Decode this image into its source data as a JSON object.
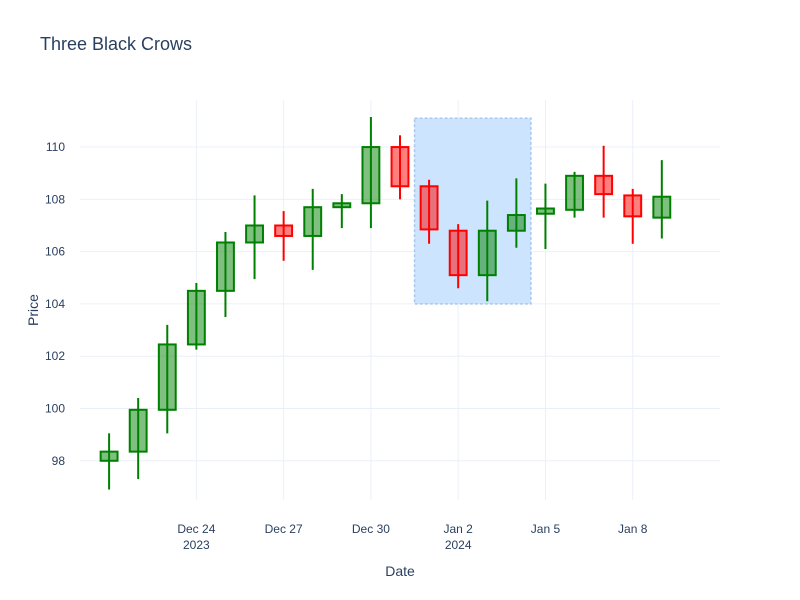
{
  "chart_data": {
    "type": "candlestick",
    "title": "Three Black Crows",
    "xlabel": "Date",
    "ylabel": "Price",
    "ylim": [
      96.5,
      111.8
    ],
    "yticks": [
      98,
      100,
      102,
      104,
      106,
      108,
      110
    ],
    "xlim": [
      "2023-12-20",
      "2024-01-11"
    ],
    "xticks": [
      {
        "date": "2023-12-24",
        "label": "Dec 24",
        "sublabel": "2023"
      },
      {
        "date": "2023-12-27",
        "label": "Dec 27",
        "sublabel": ""
      },
      {
        "date": "2023-12-30",
        "label": "Dec 30",
        "sublabel": ""
      },
      {
        "date": "2024-01-02",
        "label": "Jan 2",
        "sublabel": "2024"
      },
      {
        "date": "2024-01-05",
        "label": "Jan 5",
        "sublabel": ""
      },
      {
        "date": "2024-01-08",
        "label": "Jan 8",
        "sublabel": ""
      }
    ],
    "increasing_color": "#008000",
    "decreasing_color": "#ff0000",
    "highlight": {
      "x0": "2023-12-31 12:00",
      "x1": "2024-01-04 12:00",
      "y0": 104.0,
      "y1": 111.1,
      "fill": "#c9e3fd",
      "line": "#a9c8ee"
    },
    "candles": [
      {
        "date": "2023-12-21",
        "open": 98.0,
        "high": 99.05,
        "low": 96.9,
        "close": 98.35
      },
      {
        "date": "2023-12-22",
        "open": 98.35,
        "high": 100.4,
        "low": 97.3,
        "close": 99.95
      },
      {
        "date": "2023-12-23",
        "open": 99.95,
        "high": 103.2,
        "low": 99.05,
        "close": 102.45
      },
      {
        "date": "2023-12-24",
        "open": 102.45,
        "high": 104.8,
        "low": 102.25,
        "close": 104.5
      },
      {
        "date": "2023-12-25",
        "open": 104.5,
        "high": 106.75,
        "low": 103.5,
        "close": 106.35
      },
      {
        "date": "2023-12-26",
        "open": 106.35,
        "high": 108.15,
        "low": 104.95,
        "close": 107.0
      },
      {
        "date": "2023-12-27",
        "open": 107.0,
        "high": 107.55,
        "low": 105.65,
        "close": 106.6
      },
      {
        "date": "2023-12-28",
        "open": 106.6,
        "high": 108.4,
        "low": 105.3,
        "close": 107.7
      },
      {
        "date": "2023-12-29",
        "open": 107.7,
        "high": 108.2,
        "low": 106.9,
        "close": 107.85
      },
      {
        "date": "2023-12-30",
        "open": 107.85,
        "high": 111.15,
        "low": 106.9,
        "close": 110.0
      },
      {
        "date": "2023-12-31",
        "open": 110.0,
        "high": 110.45,
        "low": 108.0,
        "close": 108.5
      },
      {
        "date": "2024-01-01",
        "open": 108.5,
        "high": 108.75,
        "low": 106.3,
        "close": 106.85
      },
      {
        "date": "2024-01-02",
        "open": 106.8,
        "high": 107.05,
        "low": 104.6,
        "close": 105.1
      },
      {
        "date": "2024-01-03",
        "open": 105.1,
        "high": 107.95,
        "low": 104.1,
        "close": 106.8
      },
      {
        "date": "2024-01-04",
        "open": 106.8,
        "high": 108.8,
        "low": 106.15,
        "close": 107.4
      },
      {
        "date": "2024-01-05",
        "open": 107.45,
        "high": 108.6,
        "low": 106.1,
        "close": 107.65
      },
      {
        "date": "2024-01-06",
        "open": 107.6,
        "high": 109.05,
        "low": 107.3,
        "close": 108.9
      },
      {
        "date": "2024-01-07",
        "open": 108.9,
        "high": 110.05,
        "low": 107.3,
        "close": 108.2
      },
      {
        "date": "2024-01-08",
        "open": 108.15,
        "high": 108.4,
        "low": 106.3,
        "close": 107.35
      },
      {
        "date": "2024-01-09",
        "open": 107.3,
        "high": 109.5,
        "low": 106.5,
        "close": 108.1
      }
    ]
  }
}
